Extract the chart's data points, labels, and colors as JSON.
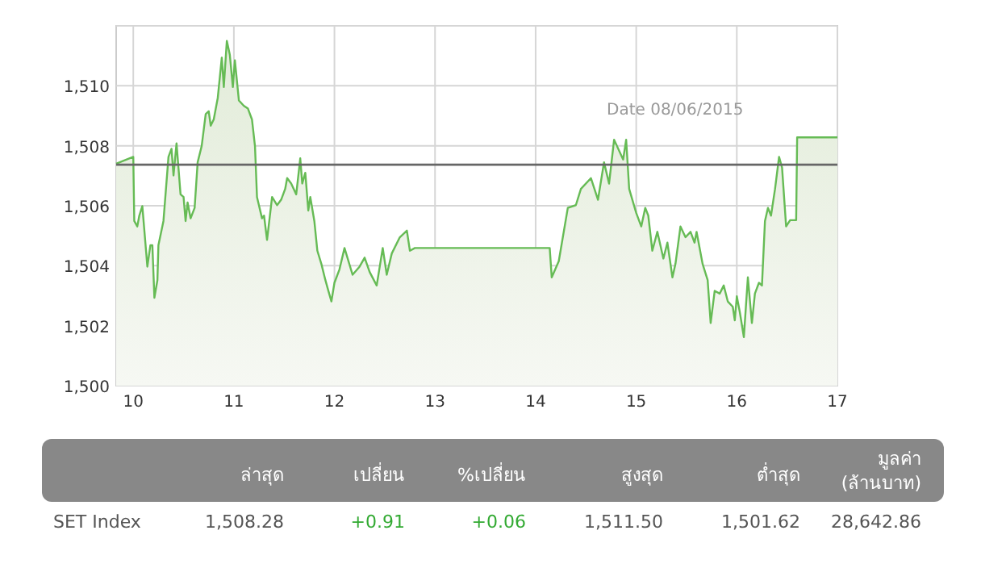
{
  "chart_data": [
    {
      "type": "area",
      "annotations": [
        "Date 08/06/2015"
      ],
      "x": [
        9.83,
        10.0,
        10.01,
        10.04,
        10.06,
        10.09,
        10.14,
        10.17,
        10.19,
        10.21,
        10.24,
        10.25,
        10.3,
        10.35,
        10.38,
        10.4,
        10.43,
        10.47,
        10.5,
        10.52,
        10.54,
        10.57,
        10.61,
        10.64,
        10.68,
        10.72,
        10.75,
        10.77,
        10.8,
        10.84,
        10.88,
        10.9,
        10.93,
        10.96,
        10.99,
        11.01,
        11.05,
        11.1,
        11.14,
        11.18,
        11.21,
        11.23,
        11.28,
        11.3,
        11.33,
        11.38,
        11.43,
        11.47,
        11.51,
        11.53,
        11.57,
        11.62,
        11.66,
        11.68,
        11.71,
        11.74,
        11.76,
        11.8,
        11.83,
        11.87,
        11.91,
        11.94,
        11.97,
        12.0,
        12.05,
        12.1,
        12.18,
        12.25,
        12.3,
        12.35,
        12.42,
        12.48,
        12.52,
        12.57,
        12.65,
        12.72,
        12.75,
        12.8,
        14.14,
        14.16,
        14.23,
        14.32,
        14.4,
        14.45,
        14.55,
        14.62,
        14.68,
        14.73,
        14.78,
        14.87,
        14.9,
        14.93,
        15.0,
        15.05,
        15.09,
        15.12,
        15.16,
        15.21,
        15.27,
        15.31,
        15.36,
        15.39,
        15.44,
        15.49,
        15.54,
        15.58,
        15.6,
        15.66,
        15.71,
        15.74,
        15.78,
        15.83,
        15.87,
        15.91,
        15.96,
        15.98,
        16.0,
        16.03,
        16.07,
        16.11,
        16.15,
        16.18,
        16.22,
        16.25,
        16.28,
        16.31,
        16.34,
        16.38,
        16.42,
        16.45,
        16.49,
        16.53,
        16.59,
        16.6,
        17.0
      ],
      "series": [
        {
          "color": "#66bb55",
          "values": [
            1507.4,
            1507.63,
            1505.49,
            1505.31,
            1505.67,
            1505.99,
            1503.97,
            1504.68,
            1504.68,
            1502.93,
            1503.52,
            1504.68,
            1505.49,
            1507.63,
            1507.9,
            1507.01,
            1508.08,
            1506.38,
            1506.29,
            1505.49,
            1506.11,
            1505.58,
            1505.93,
            1507.45,
            1507.99,
            1509.06,
            1509.15,
            1508.67,
            1508.88,
            1509.6,
            1510.94,
            1509.96,
            1511.5,
            1511.03,
            1509.96,
            1510.85,
            1509.51,
            1509.33,
            1509.24,
            1508.88,
            1507.99,
            1506.29,
            1505.58,
            1505.67,
            1504.86,
            1506.29,
            1506.02,
            1506.2,
            1506.56,
            1506.92,
            1506.74,
            1506.38,
            1507.58,
            1506.74,
            1507.1,
            1505.84,
            1506.29,
            1505.49,
            1504.5,
            1504.06,
            1503.52,
            1503.16,
            1502.81,
            1503.43,
            1503.88,
            1504.59,
            1503.7,
            1503.97,
            1504.27,
            1503.79,
            1503.34,
            1504.59,
            1503.7,
            1504.41,
            1504.95,
            1505.17,
            1504.5,
            1504.59,
            1504.59,
            1503.61,
            1504.15,
            1505.93,
            1506.02,
            1506.56,
            1506.92,
            1506.2,
            1507.45,
            1506.74,
            1508.2,
            1507.54,
            1508.2,
            1506.56,
            1505.76,
            1505.31,
            1505.93,
            1505.67,
            1504.5,
            1505.13,
            1504.24,
            1504.77,
            1503.61,
            1504.06,
            1505.31,
            1504.95,
            1505.13,
            1504.77,
            1505.13,
            1504.06,
            1503.52,
            1502.09,
            1503.16,
            1503.07,
            1503.34,
            1502.81,
            1502.63,
            1502.18,
            1502.98,
            1502.45,
            1501.62,
            1503.61,
            1502.09,
            1503.07,
            1503.43,
            1503.34,
            1505.49,
            1505.93,
            1505.67,
            1506.56,
            1507.63,
            1507.27,
            1505.31,
            1505.52,
            1505.52,
            1508.28,
            1508.28
          ]
        }
      ],
      "xlim": [
        9.83,
        17
      ],
      "ylim": [
        1500,
        1512
      ],
      "xticks": [
        10,
        11,
        12,
        13,
        14,
        15,
        16,
        17
      ],
      "yticks": [
        {
          "value": 1500,
          "label": "1,500"
        },
        {
          "value": 1502,
          "label": "1,502"
        },
        {
          "value": 1504,
          "label": "1,504"
        },
        {
          "value": 1506,
          "label": "1,506"
        },
        {
          "value": 1508,
          "label": "1,508"
        },
        {
          "value": 1510,
          "label": "1,510"
        },
        {
          "value": 1512,
          "label": null
        }
      ],
      "ref_lines": [
        {
          "axis": "y",
          "value": 1507.37,
          "color": "#666666"
        }
      ],
      "grid": true,
      "marker": "none",
      "line_style": "solid"
    },
    {
      "type": "other",
      "categories": [
        "ล่าสุด",
        "เปลี่ยน",
        "%เปลี่ยน",
        "สูงสุด",
        "ต่ำสุด",
        "มูลค่า (ล้านบาท)"
      ],
      "series": [
        {
          "name": "SET Index",
          "values": [
            1508.28,
            0.91,
            0.06,
            1511.5,
            1501.62,
            28642.86
          ],
          "value_labels": [
            "1,508.28",
            "+0.91",
            "+0.06",
            "1,511.50",
            "1,501.62",
            "28,642.86"
          ],
          "colors": [
            "#555555",
            "#33aa33",
            "#33aa33",
            "#555555",
            "#555555",
            "#555555"
          ]
        }
      ],
      "data_labels": true
    }
  ]
}
